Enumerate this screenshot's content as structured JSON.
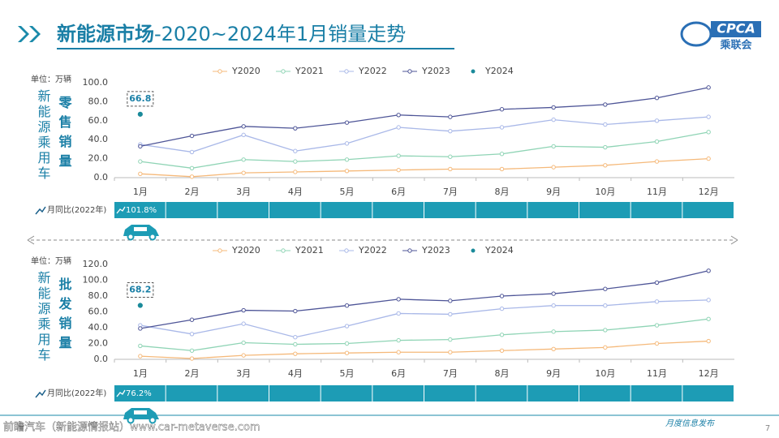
{
  "header": {
    "title_main": "新能源市场",
    "title_sub": "-2020~2024年1月销量走势",
    "logo": "CPCA",
    "logo_sub": "乘联会"
  },
  "footer": {
    "source": "前瞻汽车（新能源情报站）www.car-metaverse.com",
    "publish": "月度信息发布",
    "page": "7"
  },
  "chart_data": [
    {
      "type": "line",
      "unit": "单位：万辆",
      "side_label": "新能源乘用车",
      "metric": "零售销量",
      "categories": [
        "1月",
        "2月",
        "3月",
        "4月",
        "5月",
        "6月",
        "7月",
        "8月",
        "9月",
        "10月",
        "11月",
        "12月"
      ],
      "series": [
        {
          "name": "Y2020",
          "color": "#f5b97a",
          "values": [
            4,
            1,
            5,
            6,
            7,
            8,
            9,
            9,
            11,
            13,
            17,
            20
          ]
        },
        {
          "name": "Y2021",
          "color": "#8fd4b5",
          "values": [
            17,
            10,
            19,
            17,
            19,
            23,
            22,
            25,
            33,
            32,
            38,
            48
          ]
        },
        {
          "name": "Y2022",
          "color": "#a9b8e8",
          "values": [
            35,
            27,
            45,
            28,
            36,
            53,
            49,
            53,
            61,
            56,
            60,
            64
          ]
        },
        {
          "name": "Y2023",
          "color": "#4e5597",
          "values": [
            33,
            44,
            54,
            52,
            58,
            66,
            64,
            72,
            74,
            77,
            84,
            95
          ]
        },
        {
          "name": "Y2024",
          "color": "#1a8a9a",
          "values": [
            66.8,
            null,
            null,
            null,
            null,
            null,
            null,
            null,
            null,
            null,
            null,
            null
          ]
        }
      ],
      "ylim": [
        0,
        100
      ],
      "yticks": [
        {
          "value": 0,
          "label": "0.0"
        },
        {
          "value": 20,
          "label": "20.0"
        },
        {
          "value": 40,
          "label": "40.0"
        },
        {
          "value": 60,
          "label": "60.0"
        },
        {
          "value": 80,
          "label": "80.0"
        },
        {
          "value": 100,
          "label": "100.0"
        }
      ],
      "grid": false,
      "yoy_label": "月同比(2022年)",
      "yoy_text": "101.8%"
    },
    {
      "type": "line",
      "unit": "单位：万辆",
      "side_label": "新能源乘用车",
      "metric": "批发销量",
      "categories": [
        "1月",
        "2月",
        "3月",
        "4月",
        "5月",
        "6月",
        "7月",
        "8月",
        "9月",
        "10月",
        "11月",
        "12月"
      ],
      "series": [
        {
          "name": "Y2020",
          "color": "#f5b97a",
          "values": [
            4,
            1,
            5,
            7,
            8,
            9,
            9,
            11,
            13,
            15,
            20,
            23
          ]
        },
        {
          "name": "Y2021",
          "color": "#8fd4b5",
          "values": [
            17,
            11,
            21,
            19,
            20,
            24,
            25,
            31,
            35,
            37,
            43,
            51
          ]
        },
        {
          "name": "Y2022",
          "color": "#a9b8e8",
          "values": [
            43,
            32,
            45,
            28,
            42,
            58,
            57,
            64,
            68,
            68,
            73,
            75
          ]
        },
        {
          "name": "Y2023",
          "color": "#4e5597",
          "values": [
            39,
            50,
            62,
            61,
            68,
            76,
            74,
            80,
            83,
            89,
            97,
            112
          ]
        },
        {
          "name": "Y2024",
          "color": "#1a8a9a",
          "values": [
            68.2,
            null,
            null,
            null,
            null,
            null,
            null,
            null,
            null,
            null,
            null,
            null
          ]
        }
      ],
      "ylim": [
        0,
        120
      ],
      "yticks": [
        {
          "value": 0,
          "label": "0.0"
        },
        {
          "value": 20,
          "label": "20.0"
        },
        {
          "value": 40,
          "label": "40.0"
        },
        {
          "value": 60,
          "label": "60.0"
        },
        {
          "value": 80,
          "label": "80.0"
        },
        {
          "value": 100,
          "label": "100.0"
        },
        {
          "value": 120,
          "label": "120.0"
        }
      ],
      "grid": false,
      "yoy_label": "月同比(2022年)",
      "yoy_text": "76.2%"
    }
  ]
}
